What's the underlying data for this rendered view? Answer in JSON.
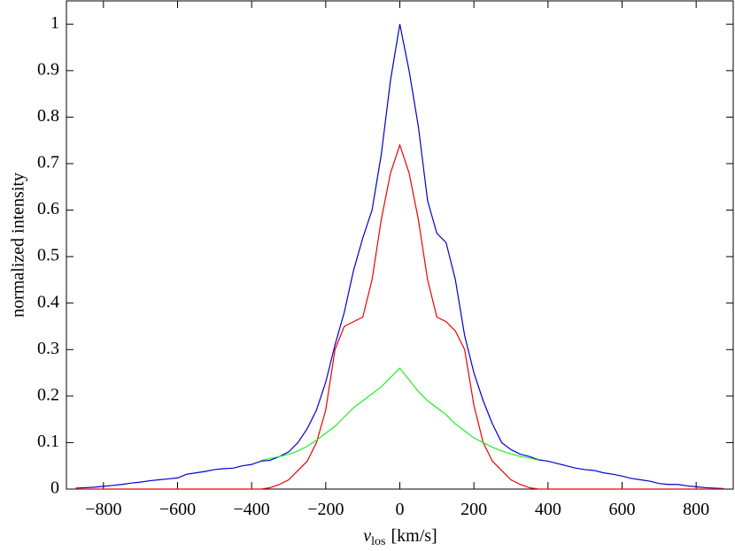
{
  "chart_data": {
    "type": "line",
    "ylabel": "normalized intensity",
    "xlabel": {
      "symbol": "v",
      "subscript": "los",
      "unit": "[km/s]"
    },
    "xlim": [
      -900,
      900
    ],
    "ylim": [
      0,
      1.05
    ],
    "xticks": [
      {
        "value": -800,
        "label": "−800"
      },
      {
        "value": -600,
        "label": "−600"
      },
      {
        "value": -400,
        "label": "−400"
      },
      {
        "value": -200,
        "label": "−200"
      },
      0,
      200,
      400,
      600,
      800
    ],
    "yticks": [
      0,
      0.1,
      0.2,
      0.3,
      0.4,
      0.5,
      0.6,
      0.7,
      0.8,
      0.9,
      1
    ],
    "x": [
      -875,
      -850,
      -825,
      -800,
      -775,
      -750,
      -725,
      -700,
      -675,
      -650,
      -625,
      -600,
      -575,
      -550,
      -525,
      -500,
      -475,
      -450,
      -425,
      -400,
      -375,
      -350,
      -325,
      -300,
      -275,
      -250,
      -225,
      -200,
      -175,
      -150,
      -125,
      -100,
      -75,
      -50,
      -25,
      0,
      25,
      50,
      75,
      100,
      125,
      150,
      175,
      200,
      225,
      250,
      275,
      300,
      325,
      350,
      375,
      400,
      425,
      450,
      475,
      500,
      525,
      550,
      575,
      600,
      625,
      650,
      675,
      700,
      725,
      750,
      775,
      800,
      825,
      850,
      875
    ],
    "series": [
      {
        "color": "#0000cc",
        "values": [
          0.002,
          0.003,
          0.004,
          0.006,
          0.008,
          0.01,
          0.013,
          0.015,
          0.018,
          0.02,
          0.022,
          0.024,
          0.032,
          0.035,
          0.038,
          0.042,
          0.044,
          0.045,
          0.05,
          0.053,
          0.06,
          0.062,
          0.07,
          0.08,
          0.1,
          0.13,
          0.17,
          0.23,
          0.31,
          0.38,
          0.47,
          0.54,
          0.6,
          0.72,
          0.88,
          1.0,
          0.9,
          0.78,
          0.62,
          0.55,
          0.53,
          0.45,
          0.33,
          0.25,
          0.19,
          0.14,
          0.1,
          0.085,
          0.075,
          0.07,
          0.063,
          0.06,
          0.055,
          0.05,
          0.045,
          0.042,
          0.04,
          0.035,
          0.032,
          0.028,
          0.023,
          0.02,
          0.017,
          0.012,
          0.01,
          0.01,
          0.007,
          0.005,
          0.003,
          0.002,
          0.001
        ]
      },
      {
        "color": "#ee0000",
        "values": [
          0,
          0,
          0,
          0,
          0,
          0,
          0,
          0,
          0,
          0,
          0,
          0,
          0,
          0,
          0,
          0,
          0,
          0,
          0,
          0,
          0,
          0.003,
          0.01,
          0.02,
          0.04,
          0.06,
          0.1,
          0.17,
          0.3,
          0.35,
          0.36,
          0.37,
          0.45,
          0.58,
          0.68,
          0.74,
          0.68,
          0.58,
          0.45,
          0.37,
          0.36,
          0.34,
          0.3,
          0.18,
          0.1,
          0.06,
          0.04,
          0.02,
          0.01,
          0.003,
          0,
          0,
          0,
          0,
          0,
          0,
          0,
          0,
          0,
          0,
          0,
          0,
          0,
          0,
          0,
          0,
          0,
          0,
          0,
          0,
          0
        ]
      },
      {
        "color": "#22ee22",
        "values": [
          null,
          null,
          null,
          null,
          null,
          null,
          null,
          null,
          null,
          null,
          null,
          null,
          null,
          null,
          null,
          null,
          null,
          null,
          null,
          null,
          0.062,
          0.066,
          0.07,
          0.075,
          0.082,
          0.092,
          0.105,
          0.12,
          0.135,
          0.155,
          0.175,
          0.19,
          0.205,
          0.22,
          0.24,
          0.26,
          0.235,
          0.21,
          0.19,
          0.175,
          0.16,
          0.14,
          0.125,
          0.11,
          0.1,
          0.09,
          0.082,
          0.076,
          0.07,
          0.067,
          0.062,
          null,
          null,
          null,
          null,
          null,
          null,
          null,
          null,
          null,
          null,
          null,
          null,
          null,
          null,
          null,
          null,
          null,
          null,
          null,
          null
        ]
      }
    ]
  }
}
